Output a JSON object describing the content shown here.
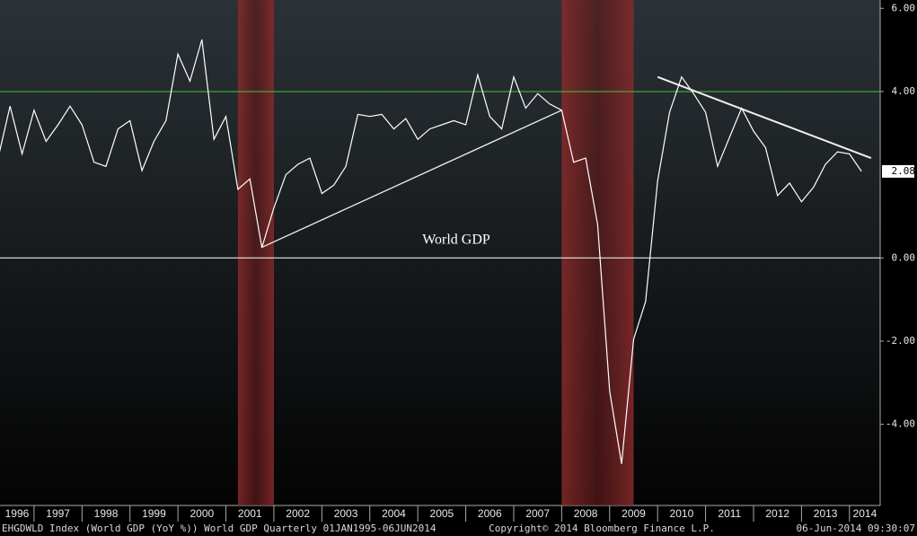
{
  "chart_data": {
    "type": "line",
    "annotation": "World GDP",
    "footer_left": "EHGDWLD Index (World GDP (YoY %)) World GDP  Quarterly 01JAN1995-06JUN2014",
    "footer_center": "Copyright© 2014 Bloomberg Finance L.P.",
    "footer_right": "06-Jun-2014 09:30:07",
    "color": "#ffffff",
    "x": [
      1996.25,
      1996.5,
      1996.75,
      1997,
      1997.25,
      1997.5,
      1997.75,
      1998,
      1998.25,
      1998.5,
      1998.75,
      1999,
      1999.25,
      1999.5,
      1999.75,
      2000,
      2000.25,
      2000.5,
      2000.75,
      2001,
      2001.25,
      2001.5,
      2001.75,
      2002,
      2002.25,
      2002.5,
      2002.75,
      2003,
      2003.25,
      2003.5,
      2003.75,
      2004,
      2004.25,
      2004.5,
      2004.75,
      2005,
      2005.25,
      2005.5,
      2005.75,
      2006,
      2006.25,
      2006.5,
      2006.75,
      2007,
      2007.25,
      2007.5,
      2007.75,
      2008,
      2008.25,
      2008.5,
      2008.75,
      2009,
      2009.25,
      2009.5,
      2009.75,
      2010,
      2010.25,
      2010.5,
      2010.75,
      2011,
      2011.25,
      2011.5,
      2011.75,
      2012,
      2012.25,
      2012.5,
      2012.75,
      2013,
      2013.25,
      2013.5,
      2013.75,
      2014,
      2014.25
    ],
    "values": [
      2.4,
      3.65,
      2.5,
      3.55,
      2.8,
      3.2,
      3.65,
      3.2,
      2.3,
      2.2,
      3.1,
      3.3,
      2.1,
      2.8,
      3.3,
      4.9,
      4.25,
      5.25,
      2.85,
      3.4,
      1.65,
      1.9,
      0.25,
      1.2,
      2.0,
      2.25,
      2.4,
      1.55,
      1.75,
      2.2,
      3.45,
      3.4,
      3.45,
      3.1,
      3.35,
      2.85,
      3.1,
      3.2,
      3.3,
      3.2,
      4.4,
      3.4,
      3.1,
      4.35,
      3.6,
      3.95,
      3.7,
      3.55,
      2.3,
      2.4,
      0.8,
      -3.2,
      -4.95,
      -1.95,
      -1.05,
      1.85,
      3.5,
      4.35,
      3.95,
      3.5,
      2.2,
      2.9,
      3.6,
      3.05,
      2.65,
      1.5,
      1.8,
      1.35,
      1.7,
      2.25,
      2.55,
      2.5,
      2.08
    ],
    "last_value_label": "2.08",
    "xlim": [
      1996.29,
      2014.64
    ],
    "xticks": [
      1996,
      1997,
      1998,
      1999,
      2000,
      2001,
      2002,
      2003,
      2004,
      2005,
      2006,
      2007,
      2008,
      2009,
      2010,
      2011,
      2012,
      2013,
      2014
    ],
    "ylim": [
      -5.95,
      6.2
    ],
    "yticks": [
      {
        "value": 6,
        "label": "6.00"
      },
      {
        "value": 4,
        "label": "4.00"
      },
      {
        "value": 0,
        "label": "0.00"
      },
      {
        "value": -2,
        "label": "-2.00"
      },
      {
        "value": -4,
        "label": "-4.00"
      }
    ],
    "shaded_regions": [
      [
        2001.25,
        2002.0
      ],
      [
        2008.0,
        2009.5
      ]
    ],
    "reference_lines": [
      {
        "value": 4,
        "color": "#3cc83c"
      },
      {
        "value": 0,
        "color": "#ffffff"
      }
    ],
    "trend_lines": [
      {
        "x": [
          2001.74,
          2008.0
        ],
        "y": [
          0.25,
          3.55
        ]
      },
      {
        "x": [
          2010.0,
          2014.45
        ],
        "y": [
          4.35,
          2.4
        ]
      }
    ]
  }
}
